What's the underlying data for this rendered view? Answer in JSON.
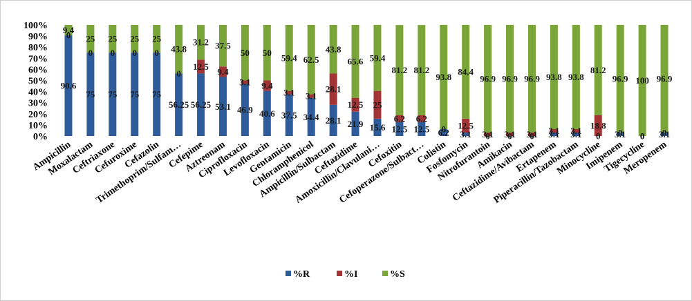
{
  "chart_data": {
    "type": "bar",
    "stacked": true,
    "percent": true,
    "categories": [
      "Ampicillin",
      "Moxalactam",
      "Ceftriaxone",
      "Cefuroxime",
      "Cefazolin",
      "Trimethoprim/Sulfam…",
      "Cefepime",
      "Aztreonam",
      "Ciprofloxacin",
      "Levofloxacin",
      "Gentamicin",
      "Chloramphenicol",
      "Ampicillin/Sulbactam",
      "Ceftazidime",
      "Amoxicillin/Clavulani…",
      "Cefoxitin",
      "Cefoperazone/Sulbact…",
      "Colistin",
      "Fosfomycin",
      "Nitrofurantoin",
      "Amikacin",
      "Ceftazidime/Avibactam",
      "Ertapenem",
      "Piperacillin/Tazobactam",
      "Minocycline",
      "Imipenem",
      "Tigecycline",
      "Meropenem"
    ],
    "series": [
      {
        "name": "%R",
        "color": "#2e5c9a",
        "values": [
          90.6,
          75,
          75,
          75,
          75,
          56.25,
          56.25,
          53.1,
          46.9,
          40.6,
          37.5,
          34.4,
          28.1,
          21.9,
          15.6,
          12.5,
          12.5,
          6.2,
          3.1,
          0,
          0,
          0,
          3.1,
          3.1,
          0,
          3.1,
          0,
          3.1
        ],
        "labels": [
          "90.6",
          "75",
          "75",
          "75",
          "75",
          "56.25",
          "56.25",
          "53.1",
          "46.9",
          "40.6",
          "37.5",
          "34.4",
          "28.1",
          "21.9",
          "15.6",
          "12.5",
          "12.5",
          "6.2",
          "3.1",
          "0",
          "0",
          "0",
          "3.1",
          "3.1",
          "0",
          "3.1",
          "0",
          "3.1"
        ]
      },
      {
        "name": "%I",
        "color": "#a33334",
        "values": [
          0,
          0,
          0,
          0,
          0,
          0,
          12.5,
          9.4,
          3.1,
          9.4,
          3.1,
          3.1,
          28.1,
          12.5,
          25,
          6.2,
          6.2,
          0,
          12.5,
          3.1,
          3.1,
          3.1,
          3.1,
          3.1,
          18.8,
          0,
          0,
          0
        ],
        "labels": [
          "0",
          "0",
          "0",
          "0",
          "0",
          "0",
          "12.5",
          "9.4",
          "3.1",
          "9.4",
          "3.1",
          "3.1",
          "28.1",
          "12.5",
          "25",
          "6.2",
          "6.2",
          "0",
          "12.5",
          "3.1",
          "3.1",
          "3.1",
          "3.1",
          "3.1",
          "18.8",
          "0",
          "0",
          "0"
        ]
      },
      {
        "name": "%S",
        "color": "#7aa538",
        "values": [
          9.4,
          25,
          25,
          25,
          25,
          43.8,
          31.2,
          37.5,
          50,
          50,
          59.4,
          62.5,
          43.8,
          65.6,
          59.4,
          81.2,
          81.2,
          93.8,
          84.4,
          96.9,
          96.9,
          96.9,
          93.8,
          93.8,
          81.2,
          96.9,
          100,
          96.9
        ],
        "labels": [
          "9.4",
          "25",
          "25",
          "25",
          "25",
          "43.8",
          "31.2",
          "37.5",
          "50",
          "50",
          "59.4",
          "62.5",
          "43.8",
          "65.6",
          "59.4",
          "81.2",
          "81.2",
          "93.8",
          "84.4",
          "96.9",
          "96.9",
          "96.9",
          "93.8",
          "93.8",
          "81.2",
          "96.9",
          "100",
          "96.9"
        ]
      }
    ],
    "y_ticks": [
      "0%",
      "10%",
      "20%",
      "30%",
      "40%",
      "50%",
      "60%",
      "70%",
      "80%",
      "90%",
      "100%"
    ],
    "ylim": [
      0,
      100
    ],
    "grid": false,
    "legend_position": "bottom"
  }
}
